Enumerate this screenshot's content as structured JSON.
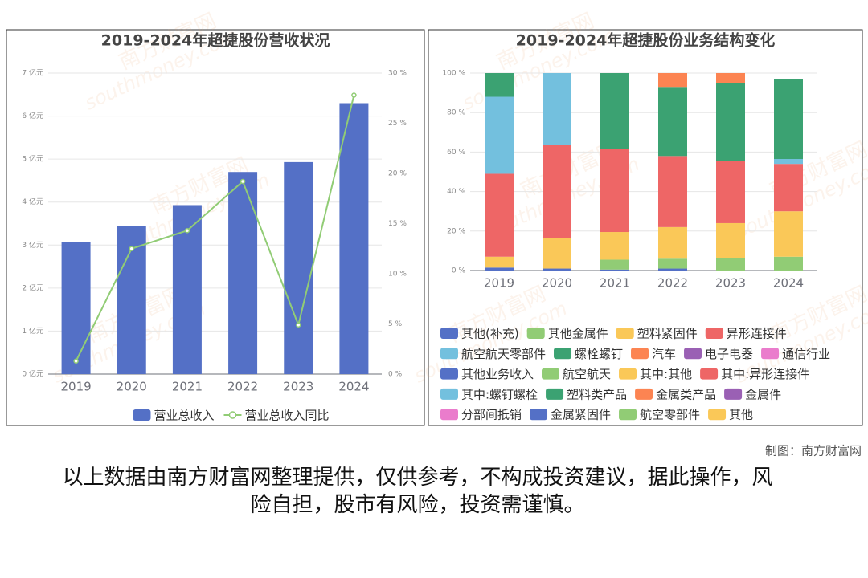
{
  "chart_data": [
    {
      "type": "bar",
      "title": "2019-2024年超捷股份营收状况",
      "categories": [
        "2019",
        "2020",
        "2021",
        "2022",
        "2023",
        "2024"
      ],
      "series": [
        {
          "name": "营业总收入",
          "color": "#5470c6",
          "values": [
            3.07,
            3.45,
            3.93,
            4.7,
            4.93,
            6.3
          ]
        },
        {
          "name": "营业总收入同比",
          "color": "#91cc75",
          "type": "line",
          "axis": "y2",
          "values": [
            1.3,
            12.5,
            14.3,
            19.2,
            4.9,
            27.8
          ]
        }
      ],
      "ylim": [
        0,
        7
      ],
      "yticks": [
        {
          "value": 0,
          "label": "0 亿元"
        },
        {
          "value": 1,
          "label": "1 亿元"
        },
        {
          "value": 2,
          "label": "2 亿元"
        },
        {
          "value": 3,
          "label": "3 亿元"
        },
        {
          "value": 4,
          "label": "4 亿元"
        },
        {
          "value": 5,
          "label": "5 亿元"
        },
        {
          "value": 6,
          "label": "6 亿元"
        },
        {
          "value": 7,
          "label": "7 亿元"
        }
      ],
      "y2lim": [
        0,
        30
      ],
      "y2ticks": [
        {
          "value": 0,
          "label": "0 %"
        },
        {
          "value": 5,
          "label": "5 %"
        },
        {
          "value": 10,
          "label": "10 %"
        },
        {
          "value": 15,
          "label": "15 %"
        },
        {
          "value": 20,
          "label": "20 %"
        },
        {
          "value": 25,
          "label": "25 %"
        },
        {
          "value": 30,
          "label": "30 %"
        }
      ],
      "grid": true,
      "legend": "bottom"
    },
    {
      "type": "bar",
      "stacked": true,
      "title": "2019-2024年超捷股份业务结构变化",
      "categories": [
        "2019",
        "2020",
        "2021",
        "2022",
        "2023",
        "2024"
      ],
      "series": [
        {
          "name": "其他(补充)",
          "color": "#5470c6",
          "values": [
            null,
            null,
            0.5,
            1,
            null,
            null
          ]
        },
        {
          "name": "其他金属件",
          "color": "#91cc75",
          "values": [
            null,
            null,
            5,
            5,
            6.5,
            7
          ]
        },
        {
          "name": "塑料紧固件",
          "color": "#fac858",
          "values": [
            null,
            null,
            14,
            16,
            17.5,
            23
          ]
        },
        {
          "name": "异形连接件",
          "color": "#ee6666",
          "values": [
            null,
            null,
            42,
            36,
            31.5,
            24
          ]
        },
        {
          "name": "航空航天零部件",
          "color": "#73c0de",
          "values": [
            null,
            null,
            null,
            null,
            null,
            2.5
          ]
        },
        {
          "name": "螺栓螺钉",
          "color": "#3ba272",
          "values": [
            null,
            null,
            38.5,
            35,
            39.5,
            40.5
          ]
        },
        {
          "name": "汽车",
          "color": "#fc8452",
          "values": [
            null,
            null,
            null,
            7,
            5,
            null
          ]
        },
        {
          "name": "电子电器",
          "color": "#9a60b4",
          "values": [
            null,
            null,
            null,
            null,
            null,
            null
          ]
        },
        {
          "name": "通信行业",
          "color": "#ea7ccc",
          "values": [
            null,
            null,
            null,
            null,
            null,
            null
          ]
        },
        {
          "name": "其他业务收入",
          "color": "#5470c6",
          "values": [
            1.5,
            1,
            null,
            null,
            null,
            null
          ]
        },
        {
          "name": "航空航天",
          "color": "#91cc75",
          "values": [
            null,
            null,
            null,
            null,
            null,
            null
          ]
        },
        {
          "name": "其中:其他",
          "color": "#fac858",
          "values": [
            5.5,
            15.5,
            null,
            null,
            null,
            null
          ]
        },
        {
          "name": "其中:异形连接件",
          "color": "#ee6666",
          "values": [
            42,
            47,
            null,
            null,
            null,
            null
          ]
        },
        {
          "name": "其中:螺钉螺栓",
          "color": "#73c0de",
          "values": [
            39,
            36.5,
            null,
            null,
            null,
            null
          ]
        },
        {
          "name": "塑料类产品",
          "color": "#3ba272",
          "values": [
            12,
            null,
            null,
            null,
            null,
            null
          ]
        },
        {
          "name": "金属类产品",
          "color": "#fc8452",
          "values": [
            null,
            null,
            null,
            null,
            null,
            null
          ]
        },
        {
          "name": "金属件",
          "color": "#9a60b4",
          "values": [
            null,
            null,
            null,
            null,
            null,
            null
          ]
        },
        {
          "name": "分部间抵销",
          "color": "#ea7ccc",
          "values": [
            null,
            null,
            null,
            null,
            null,
            null
          ]
        },
        {
          "name": "金属紧固件",
          "color": "#5470c6",
          "values": [
            null,
            null,
            null,
            null,
            null,
            null
          ]
        },
        {
          "name": "航空零部件",
          "color": "#91cc75",
          "values": [
            null,
            null,
            null,
            null,
            null,
            null
          ]
        },
        {
          "name": "其他",
          "color": "#fac858",
          "values": [
            null,
            null,
            null,
            null,
            null,
            null
          ]
        }
      ],
      "ylim": [
        0,
        100
      ],
      "yticks": [
        {
          "value": 0,
          "label": "0 %"
        },
        {
          "value": 20,
          "label": "20 %"
        },
        {
          "value": 40,
          "label": "40 %"
        },
        {
          "value": 60,
          "label": "60 %"
        },
        {
          "value": 80,
          "label": "80 %"
        },
        {
          "value": 100,
          "label": "100 %"
        }
      ],
      "grid": true,
      "legend": "bottom"
    }
  ],
  "watermark": "南方财富网",
  "watermark_url": "southmoney.com",
  "credit": "制图：南方财富网",
  "disclaimer": "以上数据由南方财富网整理提供，仅供参考，不构成投资建议，据此操作，风险自担，股市有风险，投资需谨慎。"
}
